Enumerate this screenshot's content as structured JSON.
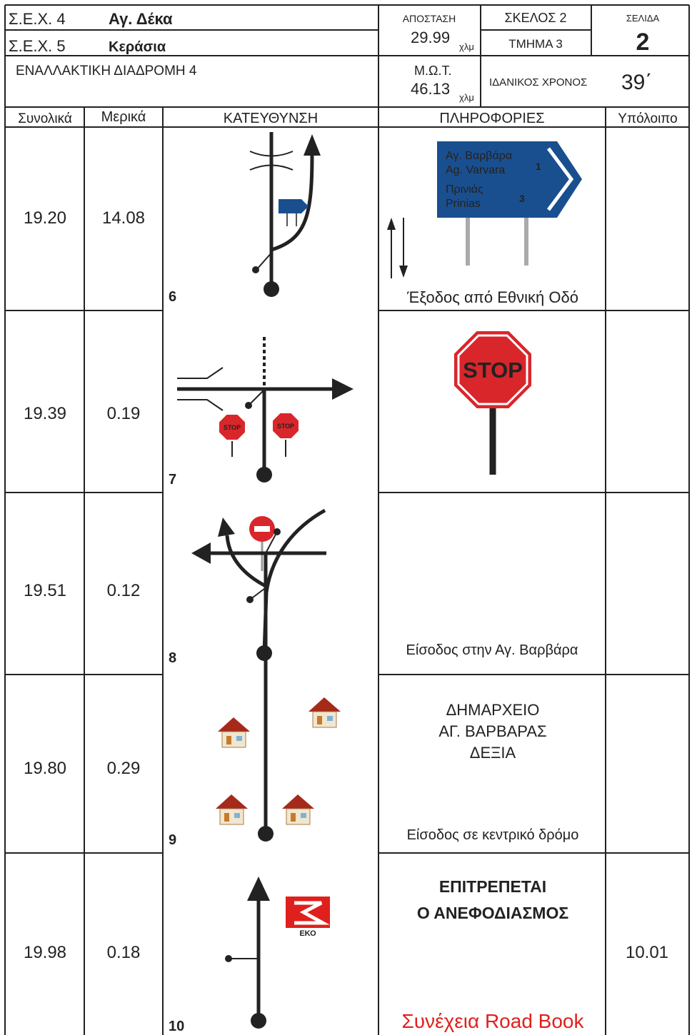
{
  "header": {
    "sek4_label": "Σ.Ε.Χ. 4",
    "sek4_name": "Αγ. Δέκα",
    "sek5_label": "Σ.Ε.Χ. 5",
    "sek5_name": "Κεράσια",
    "alt_route": "ΕΝΑΛΛΑΚΤΙΚΗ ΔΙΑΔΡΟΜΗ 4",
    "distance_label": "ΑΠΟΣΤΑΣΗ",
    "distance": "29.99",
    "distance_unit": "χλμ",
    "leg": "ΣΚΕΛΟΣ 2",
    "section": "ΤΜΗΜΑ 3",
    "page_label": "ΣΕΛΙΔΑ",
    "page": "2",
    "avg_label": "Μ.Ω.Τ.",
    "avg": "46.13",
    "avg_unit": "χλμ",
    "ideal_label": "ΙΔΑΝΙΚΟΣ ΧΡΟΝΟΣ",
    "ideal_time": "39΄"
  },
  "columns": [
    "Συνολικά",
    "Μερικά",
    "ΚΑΤΕΥΘΥΝΣΗ",
    "ΠΛΗΡΟΦΟΡΙΕΣ",
    "Υπόλοιπο"
  ],
  "rows": [
    {
      "total": "19.20",
      "partial": "14.08",
      "number": "6",
      "sign_lines": [
        "Αγ. Βαρβάρα",
        "Ag. Varvara",
        "Πρινιάς",
        "Prinias"
      ],
      "sign_numbers": [
        "1",
        "3"
      ],
      "note": "Έξοδος από Εθνική Οδό"
    },
    {
      "total": "19.39",
      "partial": "0.19",
      "number": "7",
      "stop": "STOP"
    },
    {
      "total": "19.51",
      "partial": "0.12",
      "number": "8",
      "note": "Είσοδος στην Αγ. Βαρβάρα"
    },
    {
      "total": "19.80",
      "partial": "0.29",
      "number": "9",
      "info": [
        "ΔΗΜΑΡΧΕΙΟ",
        "ΑΓ. ΒΑΡΒΑΡΑΣ",
        "ΔΕΞΙΑ"
      ],
      "note": "Είσοδος σε κεντρικό δρόμο"
    },
    {
      "total": "19.98",
      "partial": "0.18",
      "number": "10",
      "info": [
        "ΕΠΙΤΡΕΠΕΤΑΙ",
        "Ο ΑΝΕΦΟΔΙΑΣΜΟΣ"
      ],
      "logo": "ΕΚΟ",
      "remaining": "10.01",
      "note": "Συνέχεια Road Book"
    }
  ]
}
